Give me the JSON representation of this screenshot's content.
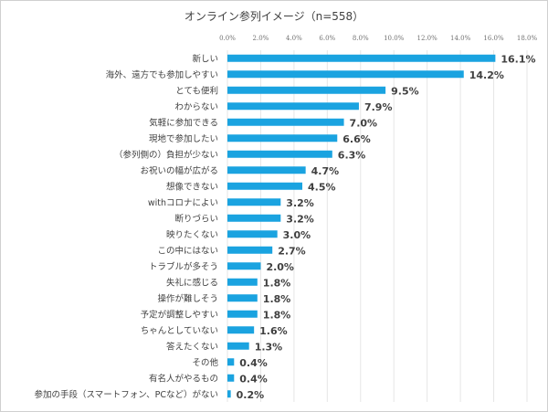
{
  "chart_data": {
    "type": "bar",
    "orientation": "horizontal",
    "title": "オンライン参列イメージ（n=558）",
    "xlim": [
      0,
      18
    ],
    "x_ticks": [
      "0.0%",
      "2.0%",
      "4.0%",
      "6.0%",
      "8.0%",
      "10.0%",
      "12.0%",
      "14.0%",
      "16.0%",
      "18.0%"
    ],
    "grid": true,
    "bar_color": "#1aa3e0",
    "categories": [
      "新しい",
      "海外、遠方でも参加しやすい",
      "とても便利",
      "わからない",
      "気軽に参加できる",
      "現地で参加したい",
      "（参列側の）負担が少ない",
      "お祝いの幅が広がる",
      "想像できない",
      "withコロナによい",
      "断りづらい",
      "映りたくない",
      "この中にはない",
      "トラブルが多そう",
      "失礼に感じる",
      "操作が難しそう",
      "予定が調整しやすい",
      "ちゃんとしていない",
      "答えたくない",
      "その他",
      "有名人がやるもの",
      "参加の手段（スマートフォン、PCなど）がない"
    ],
    "values": [
      16.1,
      14.2,
      9.5,
      7.9,
      7.0,
      6.6,
      6.3,
      4.7,
      4.5,
      3.2,
      3.2,
      3.0,
      2.7,
      2.0,
      1.8,
      1.8,
      1.8,
      1.6,
      1.3,
      0.4,
      0.4,
      0.2
    ],
    "data_labels": [
      "16.1%",
      "14.2%",
      "9.5%",
      "7.9%",
      "7.0%",
      "6.6%",
      "6.3%",
      "4.7%",
      "4.5%",
      "3.2%",
      "3.2%",
      "3.0%",
      "2.7%",
      "2.0%",
      "1.8%",
      "1.8%",
      "1.8%",
      "1.6%",
      "1.3%",
      "0.4%",
      "0.4%",
      "0.2%"
    ]
  }
}
